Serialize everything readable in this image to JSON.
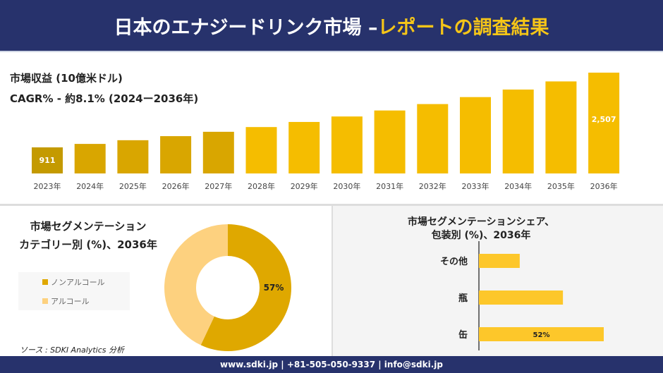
{
  "header": {
    "title_main": "日本のエナジードリンク市場 –",
    "title_accent": "レポートの調査結果"
  },
  "revenue": {
    "label": "市場収益 (10億米ドル)",
    "cagr": "CAGR% - 約8.1% (2024ー2036年)"
  },
  "chart_data": [
    {
      "type": "bar",
      "categories": [
        "2023年",
        "2024年",
        "2025年",
        "2026年",
        "2027年",
        "2028年",
        "2029年",
        "2030年",
        "2031年",
        "2032年",
        "2033年",
        "2034年",
        "2035年",
        "2036年"
      ],
      "values": [
        911,
        985,
        1064,
        1151,
        1244,
        1345,
        1454,
        1571,
        1699,
        1836,
        1985,
        2146,
        2320,
        2507
      ],
      "data_labels": {
        "0": "911",
        "13": "2,507"
      },
      "ylabel": "",
      "xlabel": "",
      "grid": false,
      "colors": [
        "#c49a00",
        "#f5c518"
      ]
    },
    {
      "type": "pie",
      "title": "市場セグメンテーション カテゴリー別 (%)、2036年",
      "labels": [
        "ノンアルコール",
        "アルコール"
      ],
      "values": [
        57,
        43
      ],
      "data_labels": [
        "57%",
        ""
      ],
      "colors": [
        "#dfa800",
        "#fdd17f"
      ],
      "legend": "left"
    },
    {
      "type": "bar",
      "orientation": "horizontal",
      "title": "市場セグメンテーションシェア、包装別 (%)、2036年",
      "categories": [
        "その他",
        "瓶",
        "缶"
      ],
      "values": [
        17,
        35,
        52
      ],
      "data_labels": [
        "",
        "",
        "52%"
      ],
      "colors": [
        "#fdc72a"
      ]
    }
  ],
  "segment_left": {
    "title1": "市場セグメンテーション",
    "title2": "カテゴリー別 (%)、2036年",
    "source": "ソース : SDKI Analytics 分析"
  },
  "segment_right": {
    "title1": "市場セグメンテーションシェア、",
    "title2": "包装別 (%)、2036年"
  },
  "footer": {
    "text": "www.sdki.jp | +81-505-050-9337 | info@sdki.jp"
  }
}
